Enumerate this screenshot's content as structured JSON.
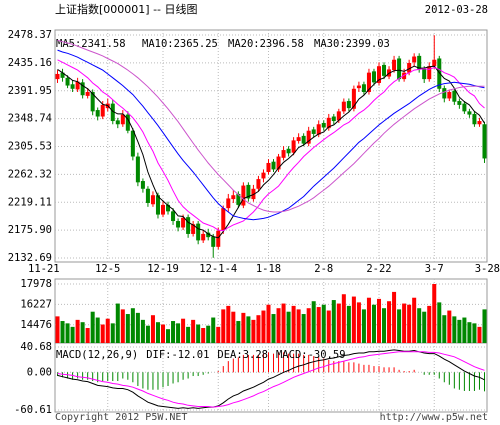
{
  "chart_data": [
    {
      "type": "candlestick",
      "title": "上证指数[000001] -- 日线图",
      "date": "2012-03-28",
      "categories": [
        "11-21",
        null,
        null,
        null,
        null,
        null,
        null,
        null,
        null,
        null,
        "12-5",
        null,
        null,
        null,
        null,
        null,
        null,
        null,
        null,
        null,
        null,
        "12-19",
        null,
        null,
        null,
        null,
        null,
        null,
        null,
        null,
        null,
        null,
        "12-1-4",
        null,
        null,
        null,
        null,
        null,
        null,
        null,
        null,
        null,
        "1-18",
        null,
        null,
        null,
        null,
        null,
        null,
        null,
        null,
        null,
        null,
        "2-8",
        null,
        null,
        null,
        null,
        null,
        null,
        null,
        null,
        null,
        null,
        "2-22",
        null,
        null,
        null,
        null,
        null,
        null,
        null,
        null,
        null,
        null,
        "3-7",
        null,
        null,
        null,
        null,
        null,
        null,
        null,
        null,
        null,
        "3-28"
      ],
      "open": [
        2410,
        2420,
        2412,
        2402,
        2394,
        2405,
        2384,
        2390,
        2362,
        2352,
        2365,
        2372,
        2346,
        2340,
        2355,
        2330,
        2290,
        2252,
        2240,
        2216,
        2230,
        2200,
        2215,
        2205,
        2190,
        2180,
        2196,
        2170,
        2186,
        2160,
        2172,
        2166,
        2150,
        2176,
        2210,
        2224,
        2232,
        2214,
        2246,
        2224,
        2240,
        2256,
        2266,
        2282,
        2270,
        2288,
        2302,
        2296,
        2314,
        2322,
        2310,
        2332,
        2324,
        2342,
        2334,
        2352,
        2346,
        2360,
        2376,
        2364,
        2396,
        2402,
        2390,
        2422,
        2404,
        2432,
        2414,
        2424,
        2442,
        2410,
        2420,
        2436,
        2446,
        2426,
        2410,
        2430,
        2442,
        2396,
        2380,
        2392,
        2376,
        2372,
        2360,
        2356,
        2340,
        2340
      ],
      "high": [
        2424,
        2426,
        2416,
        2408,
        2412,
        2410,
        2396,
        2394,
        2366,
        2376,
        2380,
        2378,
        2350,
        2362,
        2360,
        2334,
        2296,
        2256,
        2244,
        2236,
        2234,
        2222,
        2220,
        2210,
        2194,
        2200,
        2200,
        2190,
        2190,
        2176,
        2178,
        2170,
        2180,
        2214,
        2232,
        2238,
        2236,
        2250,
        2250,
        2246,
        2260,
        2270,
        2286,
        2286,
        2294,
        2306,
        2306,
        2320,
        2326,
        2326,
        2336,
        2336,
        2346,
        2346,
        2356,
        2356,
        2364,
        2380,
        2380,
        2400,
        2406,
        2406,
        2426,
        2426,
        2436,
        2436,
        2430,
        2446,
        2446,
        2426,
        2440,
        2450,
        2450,
        2430,
        2436,
        2478,
        2446,
        2400,
        2394,
        2396,
        2380,
        2376,
        2364,
        2360,
        2350,
        2344
      ],
      "low": [
        2404,
        2406,
        2396,
        2390,
        2390,
        2380,
        2380,
        2354,
        2346,
        2348,
        2360,
        2340,
        2334,
        2336,
        2326,
        2284,
        2244,
        2234,
        2212,
        2212,
        2194,
        2196,
        2200,
        2184,
        2174,
        2176,
        2164,
        2166,
        2154,
        2156,
        2160,
        2133,
        2146,
        2170,
        2204,
        2218,
        2210,
        2210,
        2220,
        2220,
        2236,
        2250,
        2262,
        2266,
        2266,
        2284,
        2290,
        2292,
        2310,
        2306,
        2306,
        2320,
        2320,
        2330,
        2330,
        2340,
        2342,
        2356,
        2360,
        2360,
        2390,
        2386,
        2386,
        2400,
        2400,
        2410,
        2410,
        2420,
        2406,
        2406,
        2416,
        2430,
        2420,
        2404,
        2406,
        2426,
        2390,
        2374,
        2376,
        2370,
        2364,
        2356,
        2350,
        2336,
        2336,
        2280
      ],
      "close": [
        2418,
        2412,
        2400,
        2395,
        2406,
        2385,
        2390,
        2360,
        2352,
        2370,
        2372,
        2345,
        2340,
        2355,
        2330,
        2290,
        2250,
        2240,
        2218,
        2230,
        2200,
        2215,
        2205,
        2190,
        2180,
        2195,
        2170,
        2185,
        2160,
        2170,
        2165,
        2150,
        2175,
        2210,
        2225,
        2230,
        2215,
        2245,
        2225,
        2240,
        2255,
        2265,
        2280,
        2270,
        2290,
        2300,
        2295,
        2315,
        2320,
        2310,
        2330,
        2325,
        2340,
        2335,
        2350,
        2345,
        2360,
        2375,
        2365,
        2395,
        2400,
        2390,
        2420,
        2405,
        2430,
        2415,
        2425,
        2440,
        2410,
        2420,
        2435,
        2445,
        2425,
        2410,
        2430,
        2440,
        2395,
        2380,
        2390,
        2375,
        2370,
        2360,
        2355,
        2340,
        2345,
        2287
      ],
      "up_color": "#ff0000",
      "down_color": "#008800",
      "series": [
        {
          "name": "MA5:2341.58",
          "color": "#000000",
          "values": [
            2425,
            2420,
            2414,
            2408,
            2406,
            2400,
            2395,
            2387,
            2379,
            2371,
            2369,
            2360,
            2356,
            2356,
            2348,
            2332,
            2313,
            2293,
            2266,
            2246,
            2228,
            2221,
            2214,
            2208,
            2198,
            2197,
            2188,
            2184,
            2178,
            2176,
            2170,
            2166,
            2164,
            2174,
            2185,
            2198,
            2211,
            2225,
            2228,
            2231,
            2236,
            2246,
            2253,
            2262,
            2272,
            2281,
            2287,
            2294,
            2304,
            2308,
            2314,
            2320,
            2325,
            2328,
            2336,
            2339,
            2346,
            2353,
            2359,
            2368,
            2379,
            2385,
            2394,
            2402,
            2409,
            2412,
            2419,
            2423,
            2424,
            2422,
            2426,
            2430,
            2427,
            2427,
            2429,
            2430,
            2420,
            2411,
            2407,
            2396,
            2382,
            2375,
            2370,
            2360,
            2354,
            2341.58
          ]
        },
        {
          "name": "MA10:2365.25",
          "color": "#ff00ff",
          "values": [
            2440,
            2436,
            2432,
            2428,
            2424,
            2418,
            2412,
            2404,
            2398,
            2390,
            2385,
            2378,
            2371,
            2365,
            2358,
            2350,
            2340,
            2328,
            2312,
            2298,
            2280,
            2267,
            2253,
            2237,
            2222,
            2212,
            2205,
            2199,
            2193,
            2187,
            2184,
            2181,
            2176,
            2175,
            2180,
            2184,
            2187,
            2190,
            2197,
            2204,
            2213,
            2224,
            2232,
            2238,
            2244,
            2254,
            2264,
            2273,
            2281,
            2290,
            2297,
            2304,
            2310,
            2316,
            2322,
            2327,
            2333,
            2339,
            2343,
            2350,
            2357,
            2362,
            2369,
            2377,
            2384,
            2390,
            2399,
            2406,
            2411,
            2416,
            2420,
            2424,
            2425,
            2426,
            2425,
            2428,
            2425,
            2420,
            2417,
            2413,
            2404,
            2397,
            2389,
            2384,
            2372,
            2365.25
          ]
        },
        {
          "name": "MA20:2396.58",
          "color": "#0000ff",
          "values": [
            2455,
            2452,
            2450,
            2447,
            2444,
            2440,
            2436,
            2432,
            2428,
            2424,
            2418,
            2412,
            2406,
            2400,
            2393,
            2386,
            2377,
            2368,
            2358,
            2348,
            2338,
            2327,
            2316,
            2305,
            2294,
            2284,
            2275,
            2266,
            2256,
            2246,
            2236,
            2226,
            2217,
            2210,
            2204,
            2198,
            2196,
            2194,
            2193,
            2192,
            2193,
            2194,
            2196,
            2199,
            2202,
            2206,
            2210,
            2216,
            2222,
            2228,
            2236,
            2244,
            2251,
            2258,
            2265,
            2272,
            2280,
            2288,
            2296,
            2304,
            2312,
            2318,
            2325,
            2332,
            2339,
            2345,
            2351,
            2357,
            2362,
            2367,
            2372,
            2378,
            2384,
            2389,
            2394,
            2398,
            2401,
            2403,
            2404,
            2405,
            2404,
            2403,
            2402,
            2400,
            2398,
            2396.58
          ]
        },
        {
          "name": "MA30:2399.03",
          "color": "#cc55cc",
          "values": [
            2470,
            2468,
            2466,
            2464,
            2461,
            2458,
            2455,
            2452,
            2449,
            2446,
            2442,
            2438,
            2434,
            2429,
            2424,
            2418,
            2412,
            2405,
            2398,
            2390,
            2382,
            2373,
            2364,
            2354,
            2344,
            2333,
            2322,
            2311,
            2300,
            2290,
            2280,
            2271,
            2262,
            2254,
            2246,
            2238,
            2231,
            2224,
            2218,
            2214,
            2210,
            2207,
            2205,
            2204,
            2204,
            2205,
            2207,
            2210,
            2213,
            2217,
            2221,
            2226,
            2232,
            2238,
            2244,
            2251,
            2258,
            2265,
            2272,
            2279,
            2287,
            2295,
            2303,
            2311,
            2318,
            2326,
            2333,
            2340,
            2346,
            2352,
            2358,
            2364,
            2369,
            2374,
            2379,
            2383,
            2387,
            2390,
            2393,
            2395,
            2397,
            2398,
            2399,
            2399,
            2399,
            2399.03
          ]
        }
      ],
      "ylim": [
        2132.69,
        2478.37
      ],
      "yticks": [
        2478.37,
        2435.16,
        2391.95,
        2348.74,
        2305.53,
        2262.32,
        2219.11,
        {
          "value": 2175.9,
          "label": "2175.90"
        },
        2132.69
      ],
      "grid": true
    },
    {
      "type": "bar",
      "values": [
        15200,
        14800,
        14600,
        14300,
        14900,
        14700,
        14200,
        15600,
        15100,
        14500,
        15000,
        14600,
        16300,
        15800,
        15400,
        15900,
        15500,
        14900,
        14400,
        15300,
        14700,
        14500,
        14100,
        14800,
        14600,
        15000,
        14300,
        14900,
        14500,
        14200,
        14400,
        15100,
        14300,
        15800,
        16100,
        15600,
        14800,
        15500,
        15200,
        14900,
        15300,
        15700,
        16200,
        15400,
        15900,
        16300,
        15600,
        16100,
        15800,
        15400,
        15900,
        16500,
        16000,
        16200,
        15700,
        16600,
        16300,
        17100,
        16100,
        16900,
        16400,
        15800,
        16800,
        16200,
        16700,
        15900,
        16500,
        17300,
        15800,
        16300,
        16200,
        16800,
        15900,
        15600,
        16100,
        17978,
        16400,
        15300,
        15700,
        15200,
        14900,
        15100,
        14700,
        14600,
        14300,
        15800
      ],
      "ylim": [
        13000,
        17978
      ],
      "yticks": [
        17978,
        16227,
        14476
      ],
      "grid": true
    },
    {
      "type": "macd",
      "label": "MACD(12,26,9)",
      "series": [
        {
          "name": "DIF:-12.01",
          "color": "#000000",
          "values": [
            -5,
            -7,
            -9,
            -11,
            -12,
            -14,
            -15,
            -18,
            -21,
            -22,
            -23,
            -25,
            -26,
            -26,
            -28,
            -32,
            -38,
            -43,
            -48,
            -51,
            -54,
            -55,
            -56,
            -57,
            -58,
            -57,
            -58,
            -57,
            -58,
            -57,
            -56,
            -56,
            -54,
            -49,
            -43,
            -38,
            -35,
            -30,
            -27,
            -24,
            -20,
            -16,
            -11,
            -8,
            -4,
            0,
            3,
            7,
            10,
            12,
            15,
            17,
            19,
            20,
            22,
            23,
            25,
            27,
            28,
            30,
            31,
            31,
            33,
            33,
            34,
            34,
            35,
            36,
            35,
            34,
            34,
            35,
            33,
            31,
            30,
            30,
            26,
            21,
            17,
            12,
            7,
            2,
            -2,
            -6,
            -8,
            -12.01
          ]
        },
        {
          "name": "DEA:3.28",
          "color": "#ff00ff",
          "values": [
            -2,
            -3,
            -4,
            -5,
            -7,
            -8,
            -9,
            -11,
            -13,
            -15,
            -16,
            -18,
            -19,
            -21,
            -22,
            -24,
            -27,
            -30,
            -34,
            -37,
            -40,
            -43,
            -45,
            -48,
            -50,
            -51,
            -53,
            -54,
            -55,
            -55,
            -55,
            -56,
            -55,
            -54,
            -52,
            -49,
            -47,
            -44,
            -41,
            -38,
            -34,
            -31,
            -27,
            -23,
            -20,
            -16,
            -12,
            -8,
            -5,
            -2,
            1,
            4,
            7,
            9,
            12,
            14,
            16,
            18,
            20,
            22,
            24,
            25,
            27,
            28,
            29,
            30,
            31,
            32,
            33,
            33,
            33,
            33,
            33,
            33,
            32,
            32,
            31,
            29,
            27,
            25,
            21,
            17,
            13,
            9,
            6,
            3.28
          ]
        },
        {
          "name": "MACD:-30.59",
          "color": "#0000ff",
          "up_color": "#ff0000",
          "down_color": "#008800",
          "values": [
            -6,
            -8,
            -10,
            -12,
            -10,
            -12,
            -12,
            -14,
            -16,
            -14,
            -14,
            -14,
            -14,
            -10,
            -12,
            -16,
            -22,
            -26,
            -28,
            -28,
            -28,
            -24,
            -22,
            -18,
            -16,
            -12,
            -10,
            -6,
            -6,
            -4,
            -2,
            0,
            2,
            10,
            18,
            22,
            24,
            28,
            28,
            28,
            28,
            30,
            32,
            30,
            32,
            32,
            30,
            30,
            30,
            28,
            28,
            26,
            24,
            22,
            20,
            18,
            18,
            18,
            16,
            16,
            14,
            12,
            12,
            10,
            10,
            8,
            8,
            8,
            4,
            2,
            2,
            4,
            0,
            -4,
            -4,
            -4,
            -10,
            -16,
            -20,
            -26,
            -28,
            -30,
            -30,
            -30,
            -28,
            -30.59
          ]
        }
      ],
      "ylim": [
        -60.61,
        40.68
      ],
      "yticks": [
        40.68,
        {
          "value": 0,
          "label": "0.00"
        },
        -60.61
      ],
      "grid": true
    }
  ],
  "footer": {
    "left": "Copyright 2012 P5W.NET",
    "right": "http://www.p5w.net"
  }
}
